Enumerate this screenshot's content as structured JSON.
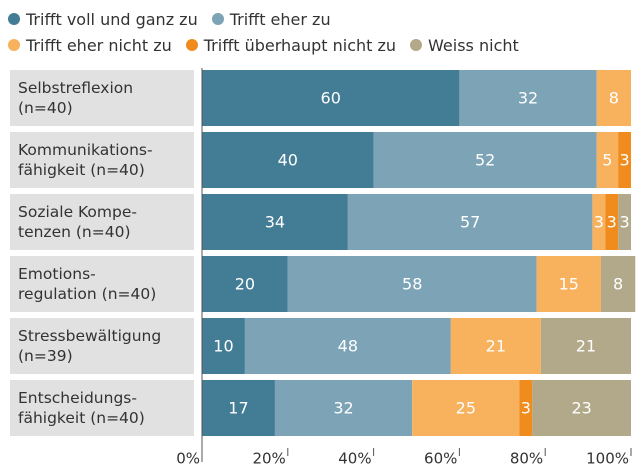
{
  "chart_data": {
    "type": "stacked-barh",
    "categories": [
      "Selbstreflexion\n(n=40)",
      "Kommunikations-\nfähigkeit (n=40)",
      "Soziale Kompe-\ntenzen (n=40)",
      "Emotions-\nregulation (n=40)",
      "Stressbewältigung\n(n=39)",
      "Entscheidungs-\nfähigkeit (n=40)"
    ],
    "series": [
      {
        "name": "Trifft voll und ganz zu",
        "color": "#437c95",
        "values": [
          60,
          40,
          34,
          20,
          10,
          17
        ]
      },
      {
        "name": "Trifft eher zu",
        "color": "#7da3b6",
        "values": [
          32,
          52,
          57,
          58,
          48,
          32
        ]
      },
      {
        "name": "Trifft eher nicht zu",
        "color": "#f8b15c",
        "values": [
          8,
          5,
          3,
          15,
          21,
          25
        ]
      },
      {
        "name": "Trifft überhaupt nicht zu",
        "color": "#f08b1e",
        "values": [
          null,
          3,
          3,
          null,
          null,
          3
        ]
      },
      {
        "name": "Weiss nicht",
        "color": "#b2a98b",
        "values": [
          null,
          null,
          3,
          8,
          21,
          23
        ]
      }
    ],
    "xlim": [
      0,
      100
    ],
    "xticks": [
      {
        "value": 0,
        "label": "0%"
      },
      {
        "value": 20,
        "label": "20%"
      },
      {
        "value": 40,
        "label": "40%"
      },
      {
        "value": 60,
        "label": "60%"
      },
      {
        "value": 80,
        "label": "80%"
      },
      {
        "value": 100,
        "label": "100%"
      }
    ]
  }
}
